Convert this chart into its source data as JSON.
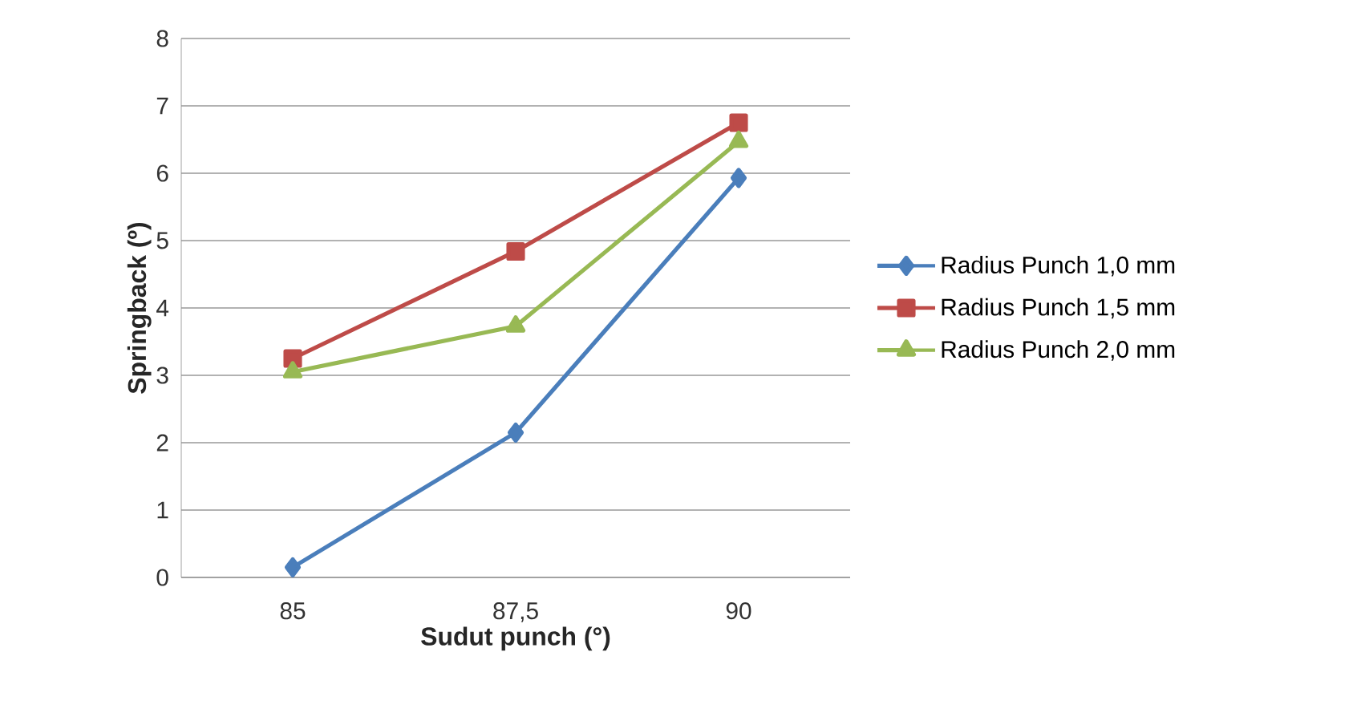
{
  "chart_data": {
    "type": "line",
    "xlabel": "Sudut punch (°)",
    "ylabel": "Springback (º)",
    "categories": [
      "85",
      "87,5",
      "90"
    ],
    "series": [
      {
        "name": "Radius Punch 1,0 mm",
        "color": "#4a7ebb",
        "marker": "diamond",
        "values": [
          0.15,
          2.15,
          5.93
        ]
      },
      {
        "name": "Radius Punch 1,5 mm",
        "color": "#be4b48",
        "marker": "square",
        "values": [
          3.25,
          4.84,
          6.75
        ]
      },
      {
        "name": "Radius Punch 2,0 mm",
        "color": "#98b954",
        "marker": "triangle",
        "values": [
          3.05,
          3.73,
          6.47
        ]
      }
    ],
    "ylim": [
      0,
      8
    ],
    "yticks": [
      0,
      1,
      2,
      3,
      4,
      5,
      6,
      7,
      8
    ],
    "grid": "y",
    "legend": "right"
  }
}
